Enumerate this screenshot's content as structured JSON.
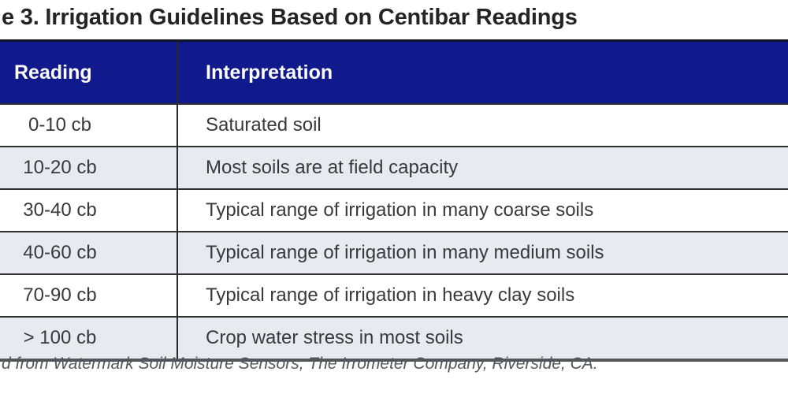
{
  "page": {
    "title": "e 3. Irrigation Guidelines Based on Centibar Readings",
    "source_note": "d from Watermark Soil Moisture Sensors, The Irrometer Company, Riverside, CA."
  },
  "table": {
    "headers": {
      "reading": "Reading",
      "interpretation": "Interpretation"
    },
    "rows": [
      {
        "reading": "0-10 cb",
        "interpretation": "Saturated soil"
      },
      {
        "reading": "10-20 cb",
        "interpretation": "Most soils are at field capacity"
      },
      {
        "reading": "30-40 cb",
        "interpretation": "Typical range of irrigation in many coarse soils"
      },
      {
        "reading": "40-60 cb",
        "interpretation": "Typical range of irrigation in many medium soils"
      },
      {
        "reading": "70-90 cb",
        "interpretation": "Typical range of irrigation in heavy clay soils"
      },
      {
        "reading": "> 100 cb",
        "interpretation": "Crop water stress in most soils"
      }
    ]
  },
  "colors": {
    "header_bg": "#101a8c",
    "header_text": "#ffffff",
    "row_bg": "#ffffff",
    "row_alt_bg": "#e8eaef",
    "body_text": "#39393d",
    "title_text": "#262327",
    "source_text": "#55565b",
    "top_border": "#141428",
    "grid_line": "#2f2f33",
    "bottom_border": "#55565a"
  },
  "chart_data": {
    "type": "table",
    "title": "e 3. Irrigation Guidelines Based on Centibar Readings",
    "columns": [
      "Reading",
      "Interpretation"
    ],
    "rows": [
      [
        "0-10 cb",
        "Saturated soil"
      ],
      [
        "10-20 cb",
        "Most soils are at field capacity"
      ],
      [
        "30-40 cb",
        "Typical range of irrigation in many coarse soils"
      ],
      [
        "40-60 cb",
        "Typical range of irrigation in many medium soils"
      ],
      [
        "70-90 cb",
        "Typical range of irrigation in heavy clay soils"
      ],
      [
        "> 100 cb",
        "Crop water stress in most soils"
      ]
    ]
  }
}
